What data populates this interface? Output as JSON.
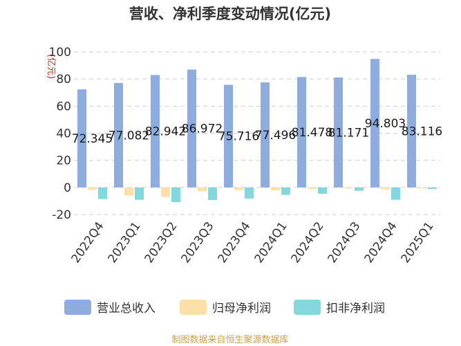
{
  "chart_data": {
    "type": "bar",
    "title": "营收、净利季度变动情况(亿元)",
    "ylabel": "(亿元)",
    "ylim": [
      -20,
      100
    ],
    "yticks": [
      -20,
      0,
      20,
      40,
      60,
      80,
      100
    ],
    "grid": true,
    "legend_position": "bottom",
    "categories": [
      "2022Q4",
      "2023Q1",
      "2023Q2",
      "2023Q3",
      "2023Q4",
      "2024Q1",
      "2024Q2",
      "2024Q3",
      "2024Q4",
      "2025Q1"
    ],
    "series": [
      {
        "name": "营业总收入",
        "color": "#8eadde",
        "values": [
          72.345,
          77.082,
          82.942,
          86.972,
          75.716,
          77.496,
          81.478,
          81.171,
          94.803,
          83.116
        ],
        "labels": [
          "72.345",
          "77.082",
          "82.942",
          "86.972",
          "75.716",
          "77.496",
          "81.478",
          "81.171",
          "94.803",
          "83.116"
        ]
      },
      {
        "name": "归母净利润",
        "color": "#fde0a8",
        "values": [
          -1.8,
          -6.0,
          -7.0,
          -2.8,
          -2.0,
          -2.2,
          -1.2,
          -0.8,
          -1.5,
          -0.8
        ]
      },
      {
        "name": "扣非净利润",
        "color": "#84d7dd",
        "values": [
          -8.6,
          -9.1,
          -10.8,
          -9.3,
          -8.2,
          -5.5,
          -4.7,
          -2.5,
          -9.1,
          -1.2
        ]
      }
    ]
  },
  "source_text": "制图数据来自恒生聚源数据库"
}
